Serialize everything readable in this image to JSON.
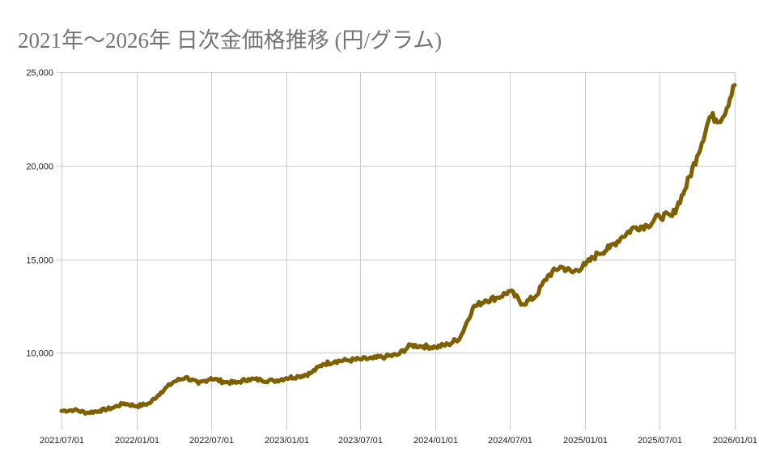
{
  "title": "2021年～2026年 日次金価格推移 (円/グラム)",
  "chart_data": {
    "type": "line",
    "title": "2021年～2026年 日次金価格推移 (円/グラム)",
    "xlabel": "",
    "ylabel": "",
    "ylim": [
      6300,
      25000
    ],
    "grid": true,
    "legend": "none",
    "line_color": "#7f6000",
    "y_ticks": [
      "10,000",
      "15,000",
      "20,000",
      "25,000"
    ],
    "y_tick_values": [
      10000,
      15000,
      20000,
      25000
    ],
    "x_ticks": [
      "2021/07/01",
      "2022/01/01",
      "2022/07/01",
      "2023/01/01",
      "2023/07/01",
      "2024/01/01",
      "2024/07/01",
      "2025/01/01",
      "2025/07/01",
      "2026/01/01"
    ],
    "series": [
      {
        "name": "金価格 (円/グラム)",
        "x": [
          "2021/07/01",
          "2021/08/01",
          "2021/09/01",
          "2021/10/01",
          "2021/11/01",
          "2021/12/01",
          "2022/01/01",
          "2022/02/01",
          "2022/03/01",
          "2022/04/01",
          "2022/05/01",
          "2022/06/01",
          "2022/07/01",
          "2022/08/01",
          "2022/09/01",
          "2022/10/01",
          "2022/11/01",
          "2022/12/01",
          "2023/01/01",
          "2023/02/01",
          "2023/03/01",
          "2023/04/01",
          "2023/05/01",
          "2023/06/01",
          "2023/07/01",
          "2023/08/01",
          "2023/09/01",
          "2023/10/01",
          "2023/11/01",
          "2023/12/01",
          "2024/01/01",
          "2024/02/01",
          "2024/03/01",
          "2024/04/01",
          "2024/05/01",
          "2024/06/01",
          "2024/07/01",
          "2024/08/01",
          "2024/09/01",
          "2024/10/01",
          "2024/11/01",
          "2024/12/01",
          "2025/01/01",
          "2025/02/01",
          "2025/03/01",
          "2025/04/01",
          "2025/05/01",
          "2025/06/01",
          "2025/07/01",
          "2025/08/01",
          "2025/09/01",
          "2025/10/01",
          "2025/11/01",
          "2025/12/01",
          "2026/01/01"
        ],
        "values": [
          6900,
          6950,
          6800,
          6900,
          7050,
          7300,
          7150,
          7300,
          7900,
          8450,
          8700,
          8350,
          8650,
          8450,
          8400,
          8600,
          8550,
          8500,
          8650,
          8750,
          8900,
          9400,
          9550,
          9600,
          9650,
          9700,
          9800,
          9900,
          10400,
          10350,
          10300,
          10450,
          10800,
          12400,
          12800,
          12950,
          13300,
          12600,
          13000,
          14100,
          14600,
          14300,
          14700,
          15300,
          15600,
          16200,
          16700,
          16800,
          17300,
          17300,
          18700,
          20500,
          22600,
          22500,
          24300
        ]
      }
    ]
  }
}
